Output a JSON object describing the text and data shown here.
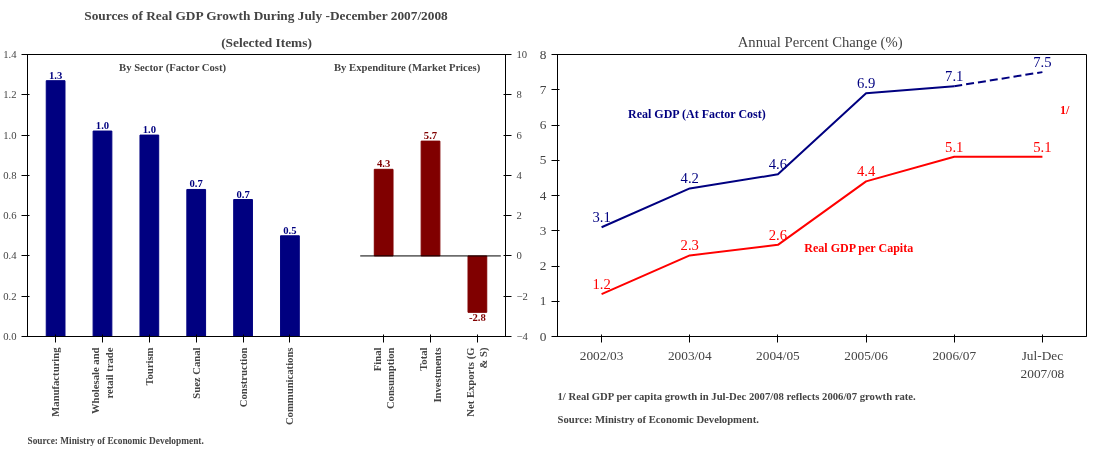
{
  "chart_data": [
    {
      "type": "bar",
      "title": "Sources of Real GDP Growth During July -December 2007/2008",
      "subtitle": "(Selected Items)",
      "categories": [
        "Manufacturing",
        "Wholesale and retail trade",
        "Tourism",
        "Suez Canal",
        "Construction",
        "Communications",
        null,
        "Final Consumption",
        "Total Investments",
        "Net Exports (G & S)"
      ],
      "series": [
        {
          "color": "#000080",
          "values": [
            1.27,
            1.02,
            1.0,
            0.73,
            0.68,
            0.5,
            null,
            null,
            null,
            null
          ],
          "value_labels": [
            "1.3",
            "1.0",
            "1.0",
            "0.7",
            "0.7",
            "0.5",
            null,
            null,
            null,
            null
          ]
        },
        {
          "color": "#800000",
          "axis": "y2",
          "values": [
            null,
            null,
            null,
            null,
            null,
            null,
            null,
            4.3,
            5.7,
            -2.8
          ],
          "value_labels": [
            null,
            null,
            null,
            null,
            null,
            null,
            null,
            "4.3",
            "5.7",
            "-2.8"
          ]
        }
      ],
      "ylim": [
        0,
        1.4
      ],
      "yticks": [
        {
          "value": 0,
          "label": "0.0"
        },
        {
          "value": 0.2,
          "label": "0.2"
        },
        {
          "value": 0.4,
          "label": "0.4"
        },
        {
          "value": 0.6,
          "label": "0.6"
        },
        {
          "value": 0.8,
          "label": "0.8"
        },
        {
          "value": 1.0,
          "label": "1.0"
        },
        {
          "value": 1.2,
          "label": "1.2"
        },
        {
          "value": 1.4,
          "label": "1.4"
        }
      ],
      "y2lim": [
        -4,
        10
      ],
      "y2ticks": [
        -4,
        -2,
        0,
        2,
        4,
        6,
        8,
        10
      ],
      "ref_lines": [
        {
          "axis": "y2",
          "value": 0,
          "color": "#000000"
        }
      ],
      "annotations": [
        "By Sector (Factor Cost)",
        "By Expenditure (Market Prices)",
        "Source: Ministry of Economic Development."
      ],
      "grid": false
    },
    {
      "type": "line",
      "title": "Annual Percent Change  (%)",
      "categories": [
        "2002/03",
        "2003/04",
        "2004/05",
        "2005/06",
        "2006/07",
        "Jul-Dec 2007/08"
      ],
      "series": [
        {
          "name": "Real GDP (At Factor Cost)",
          "color": "#000080",
          "values": [
            3.1,
            4.2,
            4.6,
            6.9,
            7.1,
            null
          ],
          "value_labels": [
            "3.1",
            "4.2",
            "4.6",
            "6.9",
            "7.1",
            null
          ]
        },
        {
          "color": "#000080",
          "line_style": "dashed",
          "values": [
            null,
            null,
            null,
            null,
            7.1,
            7.5
          ],
          "value_labels": [
            null,
            null,
            null,
            null,
            null,
            "7.5"
          ]
        },
        {
          "name": "Real GDP per Capita",
          "color": "#ff0000",
          "values": [
            1.2,
            2.3,
            2.6,
            4.4,
            5.1,
            5.1
          ],
          "value_labels": [
            "1.2",
            "2.3",
            "2.6",
            "4.4",
            "5.1",
            "5.1"
          ]
        }
      ],
      "ylim": [
        0,
        8
      ],
      "yticks": [
        0,
        1,
        2,
        3,
        4,
        5,
        6,
        7,
        8
      ],
      "annotations": [
        "1/",
        "Source: Ministry of Economic Development.",
        "1/ Real GDP per capita growth in Jul-Dec 2007/08 reflects 2006/07 growth rate."
      ],
      "grid": false,
      "line_style": "solid",
      "marker": "none"
    }
  ]
}
